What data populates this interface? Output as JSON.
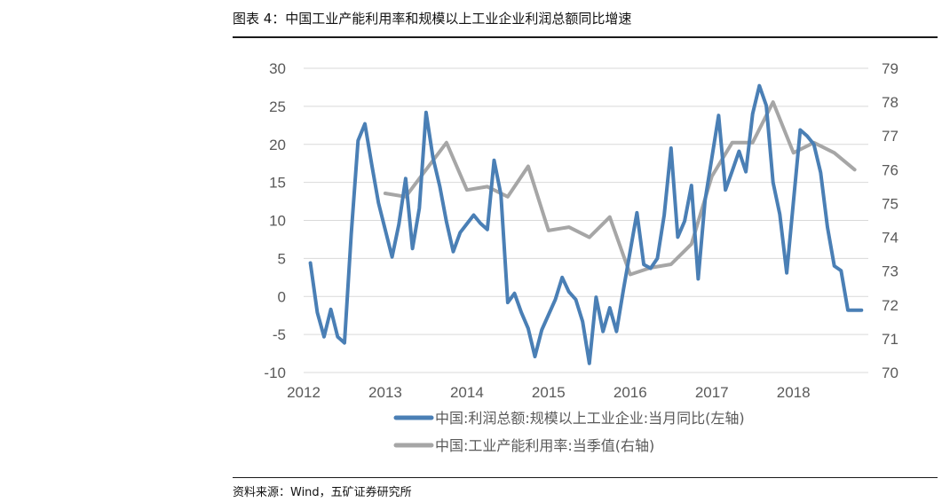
{
  "header": {
    "title": "图表 4：中国工业产能利用率和规模以上工业企业利润总额同比增速"
  },
  "footer": {
    "source": "资料来源：Wind，五矿证券研究所"
  },
  "chart_data": {
    "type": "line",
    "title": "图表 4：中国工业产能利用率和规模以上工业企业利润总额同比增速",
    "x_ticks": [
      "2012",
      "2013",
      "2014",
      "2015",
      "2016",
      "2017",
      "2018"
    ],
    "x_range": [
      2012.0,
      2018.917
    ],
    "y_left": {
      "range": [
        -10,
        30
      ],
      "ticks": [
        "-10",
        "-5",
        "0",
        "5",
        "10",
        "15",
        "20",
        "25",
        "30"
      ]
    },
    "y_right": {
      "range": [
        70,
        79
      ],
      "ticks": [
        "70",
        "71",
        "72",
        "73",
        "74",
        "75",
        "76",
        "77",
        "78",
        "79"
      ]
    },
    "colors": {
      "profit": "#4a7fb5",
      "capacity": "#a6a6a6"
    },
    "series": [
      {
        "name": "中国:利润总额:规模以上工业企业:当月同比(左轴)",
        "axis": "left",
        "color": "#4a7fb5",
        "x": [
          2012.083,
          2012.167,
          2012.25,
          2012.333,
          2012.417,
          2012.5,
          2012.583,
          2012.667,
          2012.75,
          2012.833,
          2012.917,
          2013.083,
          2013.167,
          2013.25,
          2013.333,
          2013.417,
          2013.5,
          2013.583,
          2013.667,
          2013.75,
          2013.833,
          2013.917,
          2014.083,
          2014.167,
          2014.25,
          2014.333,
          2014.417,
          2014.5,
          2014.583,
          2014.667,
          2014.75,
          2014.833,
          2014.917,
          2015.083,
          2015.167,
          2015.25,
          2015.333,
          2015.417,
          2015.5,
          2015.583,
          2015.667,
          2015.75,
          2015.833,
          2015.917,
          2016.083,
          2016.167,
          2016.25,
          2016.333,
          2016.417,
          2016.5,
          2016.583,
          2016.667,
          2016.75,
          2016.833,
          2016.917,
          2017.083,
          2017.167,
          2017.25,
          2017.333,
          2017.417,
          2017.5,
          2017.583,
          2017.667,
          2017.75,
          2017.833,
          2017.917,
          2018.083,
          2018.167,
          2018.25,
          2018.333,
          2018.417,
          2018.5,
          2018.583,
          2018.667,
          2018.75,
          2018.833
        ],
        "values": [
          4.4,
          -2.1,
          -5.3,
          -1.7,
          -5.3,
          -6.1,
          8.2,
          20.5,
          22.7,
          17.4,
          12.3,
          5.2,
          9.5,
          15.5,
          6.3,
          11.6,
          24.2,
          18.3,
          14.5,
          9.8,
          5.9,
          8.4,
          10.7,
          9.6,
          8.8,
          17.9,
          13.4,
          -0.8,
          0.4,
          -2.1,
          -4.2,
          -7.9,
          -4.4,
          -0.4,
          2.5,
          0.6,
          -0.4,
          -3.3,
          -8.8,
          -0.1,
          -4.6,
          -1.5,
          -4.6,
          0.9,
          11.0,
          4.2,
          3.7,
          5.0,
          10.7,
          19.5,
          7.8,
          9.9,
          14.6,
          2.3,
          12.6,
          23.8,
          14.0,
          16.5,
          19.1,
          16.4,
          24.0,
          27.7,
          25.1,
          15.0,
          10.8,
          3.1,
          21.9,
          21.1,
          20.0,
          16.3,
          9.1,
          4.0,
          3.4,
          -1.8,
          -1.8,
          -1.8
        ]
      },
      {
        "name": "中国:工业产能利用率:当季值(右轴)",
        "axis": "right",
        "color": "#a6a6a6",
        "x": [
          2013.0,
          2013.25,
          2013.5,
          2013.75,
          2014.0,
          2014.25,
          2014.5,
          2014.75,
          2015.0,
          2015.25,
          2015.5,
          2015.75,
          2016.0,
          2016.25,
          2016.5,
          2016.75,
          2017.0,
          2017.25,
          2017.5,
          2017.75,
          2018.0,
          2018.25,
          2018.5,
          2018.75
        ],
        "values": [
          75.3,
          75.2,
          76.0,
          76.8,
          75.4,
          75.5,
          75.2,
          76.1,
          74.2,
          74.3,
          74.0,
          74.6,
          72.9,
          73.1,
          73.2,
          73.8,
          75.8,
          76.8,
          76.8,
          78.0,
          76.5,
          76.8,
          76.5,
          76.0
        ]
      }
    ],
    "legend": [
      "中国:利润总额:规模以上工业企业:当月同比(左轴)",
      "中国:工业产能利用率:当季值(右轴)"
    ],
    "legend_position": "bottom-center",
    "grid": true
  }
}
